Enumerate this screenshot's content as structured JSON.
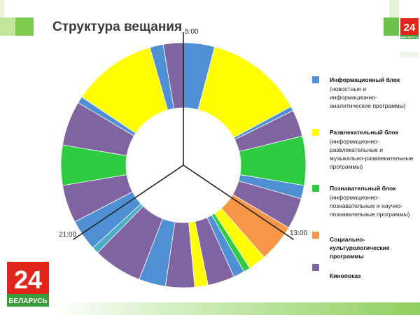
{
  "title": "Структура вещания",
  "time_labels": {
    "top": "5:00",
    "right": "13:00",
    "left": "21:00"
  },
  "colors": {
    "info": "#4f8fd3",
    "entertainment": "#ffff00",
    "educational": "#2ecc40",
    "socio_cultural": "#f79646",
    "films": "#8064a2",
    "teal": "#4bacc6",
    "accent_green": "#6cc24a",
    "brand_red": "#e1251b"
  },
  "legend": [
    {
      "color": "#4f8fd3",
      "title": "Информационный блок",
      "desc": "(новостные и информационно-аналитические программы)"
    },
    {
      "color": "#ffff00",
      "title": "Развлекательный блок",
      "desc": "(информационно-развлекательные и музыкально-развлекательные программы)"
    },
    {
      "color": "#2ecc40",
      "title": "Познавательный блок",
      "desc": "(информационно-познавательные и научно-познавательные программы)"
    },
    {
      "color": "#f79646",
      "title": "Социально-культурологические программы",
      "desc": ""
    },
    {
      "color": "#8064a2",
      "title": "Кинопоказ",
      "desc": ""
    }
  ],
  "logo": {
    "number": "24",
    "name": "БЕЛАРУСЬ"
  },
  "chart_data": {
    "type": "pie",
    "title": "Структура вещания",
    "series_name": "",
    "categories": [
      "Информационный блок",
      "Развлекательный блок",
      "Познавательный блок",
      "Социально-культурологические программы",
      "Кинопоказ"
    ],
    "segments": [
      {
        "category": "Информационный блок",
        "color": "#4f8fd3",
        "degrees": 14
      },
      {
        "category": "Развлекательный блок",
        "color": "#ffff00",
        "degrees": 44
      },
      {
        "category": "Информационный блок",
        "color": "#4f8fd3",
        "degrees": 2
      },
      {
        "category": "Кинопоказ",
        "color": "#8064a2",
        "degrees": 12
      },
      {
        "category": "Познавательный блок",
        "color": "#2ecc40",
        "degrees": 22
      },
      {
        "category": "Информационный блок",
        "color": "#4f8fd3",
        "degrees": 6
      },
      {
        "category": "Кинопоказ",
        "color": "#8064a2",
        "degrees": 14
      },
      {
        "category": "Социально-культурологические программы",
        "color": "#f79646",
        "degrees": 17
      },
      {
        "category": "Развлекательный блок",
        "color": "#ffff00",
        "degrees": 8
      },
      {
        "category": "Познавательный блок",
        "color": "#2ecc40",
        "degrees": 3
      },
      {
        "category": "Информационный блок",
        "color": "#4f8fd3",
        "degrees": 5
      },
      {
        "category": "Кинопоказ",
        "color": "#8064a2",
        "degrees": 12
      },
      {
        "category": "Развлекательный блок",
        "color": "#ffff00",
        "degrees": 6
      },
      {
        "category": "Кинопоказ",
        "color": "#8064a2",
        "degrees": 13
      },
      {
        "category": "Информационный блок",
        "color": "#4f8fd3",
        "degrees": 12
      },
      {
        "category": "Кинопоказ",
        "color": "#8064a2",
        "degrees": 22
      },
      {
        "category": "Информационный блок",
        "color": "#4bacc6",
        "degrees": 3
      },
      {
        "category": "Информационный блок",
        "color": "#4f8fd3",
        "degrees": 14
      },
      {
        "category": "Кинопоказ",
        "color": "#8064a2",
        "degrees": 17
      },
      {
        "category": "Познавательный блок",
        "color": "#2ecc40",
        "degrees": 18
      },
      {
        "category": "Кинопоказ",
        "color": "#8064a2",
        "degrees": 20
      },
      {
        "category": "Информационный блок",
        "color": "#4f8fd3",
        "degrees": 3
      },
      {
        "category": "Развлекательный блок",
        "color": "#ffff00",
        "degrees": 38
      },
      {
        "category": "Информационный блок",
        "color": "#4f8fd3",
        "degrees": 6
      },
      {
        "category": "Кинопоказ",
        "color": "#8064a2",
        "degrees": 9
      }
    ],
    "divider_times": [
      "5:00",
      "13:00",
      "21:00"
    ],
    "legend_position": "right"
  }
}
